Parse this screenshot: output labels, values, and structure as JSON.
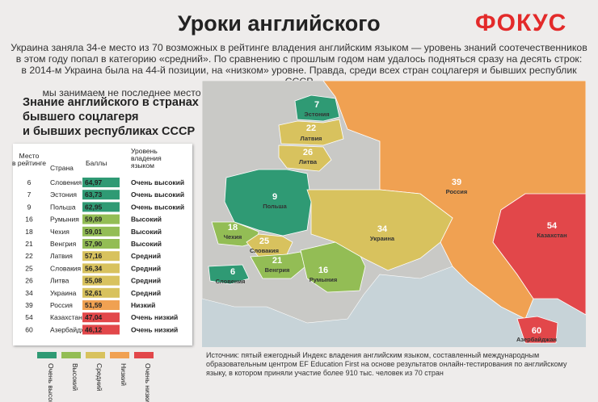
{
  "header": {
    "title": "Уроки английского",
    "logo": "ФОКУС"
  },
  "intro": [
    "Украина заняла 34-е место из 70 возможных в рейтинге владения английским языком — уровень знаний соотечественников",
    "в этом году попал в категорию «средний». По сравнению с прошлым годом нам удалось подняться сразу на десять строк:",
    "в 2014-м Украина была на 44-й позиции, на «низком» уровне. Правда, среди всех стран соцлагеря и бывших республик СССР",
    "мы занимаем не последнее место — хуже английский знают, например, в России, Казахстане и Азербайджане"
  ],
  "section_title": [
    "Знание английского в странах",
    "бывшего соцлагеря",
    "и бывших республиках СССР"
  ],
  "table": {
    "headers": [
      "Место в рейтинге",
      "Страна",
      "Баллы",
      "Уровень владения языком"
    ],
    "rows": [
      [
        6,
        "Словения",
        "64,97",
        "Очень высокий"
      ],
      [
        7,
        "Эстония",
        "63,73",
        "Очень высокий"
      ],
      [
        9,
        "Польша",
        "62,95",
        "Очень высокий"
      ],
      [
        16,
        "Румыния",
        "59,69",
        "Высокий"
      ],
      [
        18,
        "Чехия",
        "59,01",
        "Высокий"
      ],
      [
        21,
        "Венгрия",
        "57,90",
        "Высокий"
      ],
      [
        22,
        "Латвия",
        "57,16",
        "Средний"
      ],
      [
        25,
        "Словакия",
        "56,34",
        "Средний"
      ],
      [
        26,
        "Литва",
        "55,08",
        "Средний"
      ],
      [
        34,
        "Украина",
        "52,61",
        "Средний"
      ],
      [
        39,
        "Россия",
        "51,59",
        "Низкий"
      ],
      [
        54,
        "Казахстан",
        "47,04",
        "Очень низкий"
      ],
      [
        60,
        "Азербайджан",
        "46,12",
        "Очень низкий"
      ]
    ]
  },
  "legend": [
    {
      "label": "Очень высокий",
      "color": "#2f9a74"
    },
    {
      "label": "Высокий",
      "color": "#93bd55"
    },
    {
      "label": "Средний",
      "color": "#d8c25e"
    },
    {
      "label": "Низкий",
      "color": "#f0a152"
    },
    {
      "label": "Очень низкий",
      "color": "#e2474a"
    }
  ],
  "source": "Источник: пятый ежегодный Индекс владения английским языком, составленный международным образовательным центром EF Education First на основе результатов онлайн-тестирования по английскому языку, в котором приняли участие более 910 тыс. человек из 70 стран"
}
